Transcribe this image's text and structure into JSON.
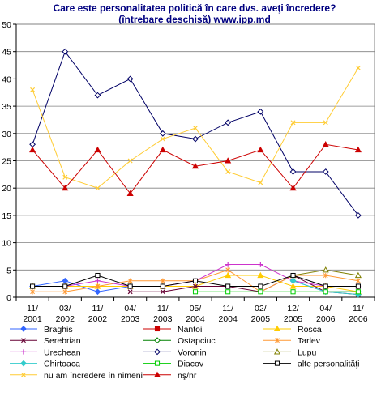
{
  "chart_data": {
    "type": "line",
    "title": [
      "Care este personalitatea politică în care dvs. aveţi încredere?",
      "(întrebare deschisă) www.ipp.md"
    ],
    "xlabel": "",
    "ylabel": "",
    "ylim": [
      0,
      50
    ],
    "yticks": [
      "0",
      "5",
      "10",
      "15",
      "20",
      "25",
      "30",
      "35",
      "40",
      "45",
      "50"
    ],
    "grid": "horizontal",
    "legend_position": "bottom",
    "categories": [
      [
        "11/",
        "2001"
      ],
      [
        "03/",
        "2002"
      ],
      [
        "11/",
        "2002"
      ],
      [
        "04/",
        "2003"
      ],
      [
        "11/",
        "2003"
      ],
      [
        "05/",
        "2004"
      ],
      [
        "11/",
        "2004"
      ],
      [
        "02/",
        "2005"
      ],
      [
        "12/",
        "2005"
      ],
      [
        "04/",
        "2006"
      ],
      [
        "11/",
        "2006"
      ]
    ],
    "series": [
      {
        "name": "Braghis",
        "color": "#3366ff",
        "marker": "diamond-filled",
        "values": [
          2,
          3,
          1,
          2,
          null,
          null,
          null,
          null,
          3,
          1,
          1
        ]
      },
      {
        "name": "Nantoi",
        "color": "#cc0000",
        "marker": "square-filled",
        "values": [
          null,
          null,
          null,
          null,
          null,
          null,
          null,
          null,
          null,
          null,
          null
        ]
      },
      {
        "name": "Rosca",
        "color": "#ffcc00",
        "marker": "triangle-filled",
        "values": [
          2,
          2,
          2,
          2,
          2,
          2,
          4,
          4,
          2,
          2,
          1
        ]
      },
      {
        "name": "Serebrian",
        "color": "#660033",
        "marker": "x",
        "values": [
          null,
          null,
          null,
          1,
          1,
          2,
          2,
          1,
          4,
          1,
          0.5
        ]
      },
      {
        "name": "Ostapciuc",
        "color": "#008000",
        "marker": "diamond-open",
        "values": [
          null,
          null,
          null,
          null,
          null,
          null,
          null,
          null,
          null,
          null,
          0.5
        ]
      },
      {
        "name": "Tarlev",
        "color": "#ff9933",
        "marker": "asterisk",
        "values": [
          1,
          1,
          2,
          3,
          3,
          3,
          5,
          1,
          4,
          4,
          3
        ]
      },
      {
        "name": "Urechean",
        "color": "#cc33cc",
        "marker": "plus",
        "values": [
          null,
          2,
          3,
          2,
          2,
          3,
          6,
          6,
          3,
          2,
          2
        ]
      },
      {
        "name": "Voronin",
        "color": "#000066",
        "marker": "diamond-open",
        "values": [
          28,
          45,
          37,
          40,
          30,
          29,
          32,
          34,
          23,
          23,
          15
        ]
      },
      {
        "name": "Lupu",
        "color": "#808000",
        "marker": "triangle-open",
        "values": [
          null,
          null,
          null,
          null,
          null,
          null,
          null,
          null,
          4,
          5,
          4
        ]
      },
      {
        "name": "Chirtoaca",
        "color": "#33cccc",
        "marker": "diamond-filled",
        "values": [
          null,
          null,
          null,
          null,
          null,
          null,
          null,
          null,
          3,
          1,
          0.5
        ]
      },
      {
        "name": "Diacov",
        "color": "#00cc00",
        "marker": "square-open",
        "values": [
          null,
          null,
          null,
          null,
          null,
          1,
          1,
          1,
          1,
          1,
          1
        ]
      },
      {
        "name": "alte personalităţi",
        "color": "#000000",
        "marker": "square-open",
        "values": [
          2,
          2,
          4,
          2,
          2,
          3,
          2,
          2,
          4,
          2,
          2
        ]
      },
      {
        "name": "nu am încredere în nimeni",
        "color": "#ffcc33",
        "marker": "x",
        "values": [
          38,
          22,
          20,
          25,
          29,
          31,
          23,
          21,
          32,
          32,
          42
        ]
      },
      {
        "name": "nş/nr",
        "color": "#cc0000",
        "marker": "triangle-filled",
        "values": [
          27,
          20,
          27,
          19,
          27,
          24,
          25,
          27,
          20,
          28,
          27
        ]
      }
    ]
  }
}
